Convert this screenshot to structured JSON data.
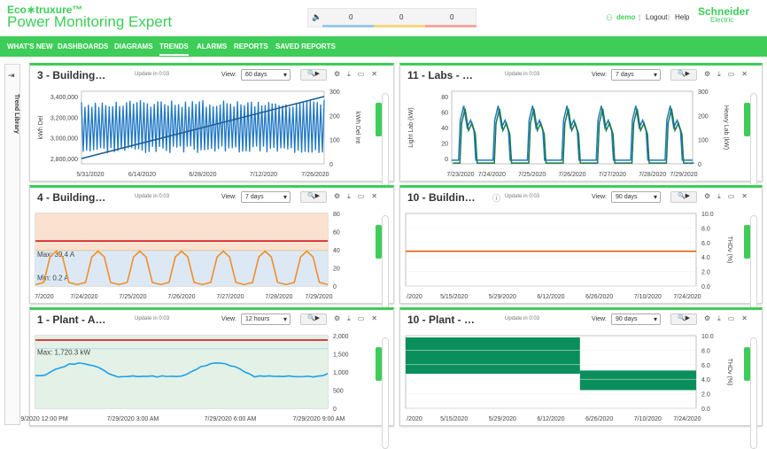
{
  "header": {
    "logo_line1": "Eco∗truxure™",
    "logo_line2": "Power Monitoring Expert",
    "alarm_counts": [
      "0",
      "0",
      "0"
    ],
    "user": "demo",
    "logout": "Logout",
    "help": "Help",
    "brand": "Schneider",
    "brand_sub": "Electric"
  },
  "colors": {
    "accent": "#3dcd58",
    "series_blue": "#1f77c4",
    "threshold_red": "#d62728",
    "warm_orange": "#f28c28",
    "teal_band": "#0a8f5c"
  },
  "nav": [
    "WHAT'S NEW",
    "DASHBOARDS",
    "DIAGRAMS",
    "TRENDS",
    "ALARMS",
    "REPORTS",
    "SAVED REPORTS"
  ],
  "sidebar": {
    "label": "Trend Library",
    "icon": "collapse-icon"
  },
  "panels": [
    {
      "id": "p1",
      "title": "3 - Building…",
      "update": "Update in 0:03",
      "view_label": "View:",
      "view": "60 days",
      "y_left": [
        "3,400,000",
        "3,200,000",
        "3,000,000",
        "2,800,000"
      ],
      "y_right": [
        "300",
        "200",
        "100",
        "0"
      ],
      "y_left_title": "kWh Del",
      "y_right_title": "kWh Del Int",
      "x": [
        "5/31/2020",
        "6/14/2020",
        "6/28/2020",
        "7/12/2020",
        "7/26/2020"
      ]
    },
    {
      "id": "p2",
      "title": "11 - Labs - …",
      "update": "Update in 0:03",
      "view_label": "View:",
      "view": "7 days",
      "y_left": [
        "80",
        "60",
        "40",
        "20",
        "0"
      ],
      "y_right": [
        "300",
        "200",
        "100",
        "0"
      ],
      "y_left_title": "Light Lab (kW)",
      "y_right_title": "Heavy Lab (kW)",
      "x": [
        "7/23/2020",
        "7/24/2020",
        "7/25/2020",
        "7/26/2020",
        "7/27/2020",
        "7/28/2020",
        "7/29/2020"
      ]
    },
    {
      "id": "p3",
      "title": "4 - Building…",
      "update": "Update in 0:03",
      "view_label": "View:",
      "view": "7 days",
      "y_right": [
        "80",
        "60",
        "40",
        "20",
        "0"
      ],
      "max_label": "Max: 39.4 A",
      "min_label": "Min: 0.2 A",
      "x": [
        "7/2020",
        "7/24/2020",
        "7/25/2020",
        "7/26/2020",
        "7/27/2020",
        "7/28/2020",
        "7/29/2020"
      ]
    },
    {
      "id": "p4",
      "title": "10 - Buildin…",
      "update": "Update in 0:03",
      "view_label": "View:",
      "view": "90 days",
      "y_right": [
        "10.0",
        "8.0",
        "6.0",
        "4.0",
        "2.0",
        "0.0"
      ],
      "y_right_title": "THDv (%)",
      "x": [
        "/2020",
        "5/15/2020",
        "5/29/2020",
        "6/12/2020",
        "6/26/2020",
        "7/10/2020",
        "7/24/2020"
      ]
    },
    {
      "id": "p5",
      "title": "1 - Plant - A…",
      "update": "Update in 0:03",
      "view_label": "View:",
      "view": "12 hours",
      "y_right": [
        "2,000",
        "1,500",
        "1,000",
        "500",
        "0"
      ],
      "max_label": "Max: 1,720.3 kW",
      "x": [
        "9/2020 12:00 PM",
        "7/29/2020 3:00 AM",
        "7/29/2020 6:00 AM",
        "7/29/2020 9:00 AM"
      ]
    },
    {
      "id": "p6",
      "title": "10 - Plant - …",
      "update": "Update in 0:03",
      "view_label": "View:",
      "view": "90 days",
      "y_right": [
        "10.0",
        "8.0",
        "6.0",
        "4.0",
        "2.0",
        "0.0"
      ],
      "y_right_title": "THDv (%)",
      "x": [
        "/2020",
        "5/15/2020",
        "5/29/2020",
        "6/12/2020",
        "6/26/2020",
        "7/10/2020",
        "7/24/2020"
      ]
    }
  ]
}
